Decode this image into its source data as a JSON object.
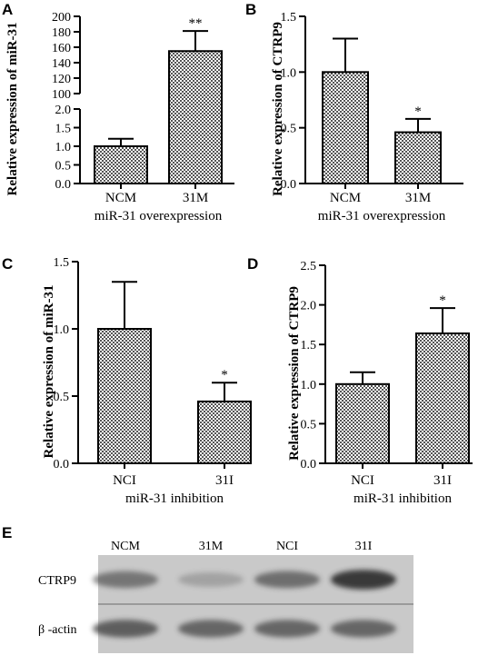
{
  "chart_data": [
    {
      "panel": "A",
      "type": "bar",
      "categories": [
        "NCM",
        "31M"
      ],
      "values": [
        1.0,
        155
      ],
      "errors": [
        0.2,
        26
      ],
      "stars": [
        "",
        "**"
      ],
      "xlabel": "miR-31 overexpression",
      "ylabel": "Relative expression of miR-31",
      "broken_axis": true,
      "lower_ylim": [
        0,
        2.0
      ],
      "lower_ticks": [
        "0.0",
        "0.5",
        "1.0",
        "1.5",
        "2.0"
      ],
      "upper_ylim": [
        100,
        200
      ],
      "upper_ticks": [
        "100",
        "120",
        "140",
        "160",
        "180",
        "200"
      ]
    },
    {
      "panel": "B",
      "type": "bar",
      "categories": [
        "NCM",
        "31M"
      ],
      "values": [
        1.0,
        0.46
      ],
      "errors": [
        0.3,
        0.12
      ],
      "stars": [
        "",
        "*"
      ],
      "xlabel": "miR-31 overexpression",
      "ylabel": "Relative expression of CTRP9",
      "ylim": [
        0,
        1.5
      ],
      "ticks": [
        "0.0",
        "0.5",
        "1.0",
        "1.5"
      ]
    },
    {
      "panel": "C",
      "type": "bar",
      "categories": [
        "NCI",
        "31I"
      ],
      "values": [
        1.0,
        0.46
      ],
      "errors": [
        0.35,
        0.14
      ],
      "stars": [
        "",
        "*"
      ],
      "xlabel": "miR-31 inhibition",
      "ylabel": "Relative expression of miR-31",
      "ylim": [
        0,
        1.5
      ],
      "ticks": [
        "0.0",
        "0.5",
        "1.0",
        "1.5"
      ]
    },
    {
      "panel": "D",
      "type": "bar",
      "categories": [
        "NCI",
        "31I"
      ],
      "values": [
        1.0,
        1.64
      ],
      "errors": [
        0.15,
        0.32
      ],
      "stars": [
        "",
        "*"
      ],
      "xlabel": "miR-31 inhibition",
      "ylabel": "Relative expression of CTRP9",
      "ylim": [
        0,
        2.5
      ],
      "ticks": [
        "0.0",
        "0.5",
        "1.0",
        "1.5",
        "2.0",
        "2.5"
      ]
    }
  ],
  "blot": {
    "panel": "E",
    "lanes": [
      "NCM",
      "31M",
      "NCI",
      "31I"
    ],
    "rows": [
      {
        "label": "CTRP9",
        "intensity": [
          0.55,
          0.25,
          0.6,
          0.95
        ]
      },
      {
        "label": "β -actin",
        "intensity": [
          0.7,
          0.65,
          0.65,
          0.65
        ]
      }
    ],
    "colors": {
      "membrane": "#c9c9c9",
      "band": "#333333"
    }
  }
}
